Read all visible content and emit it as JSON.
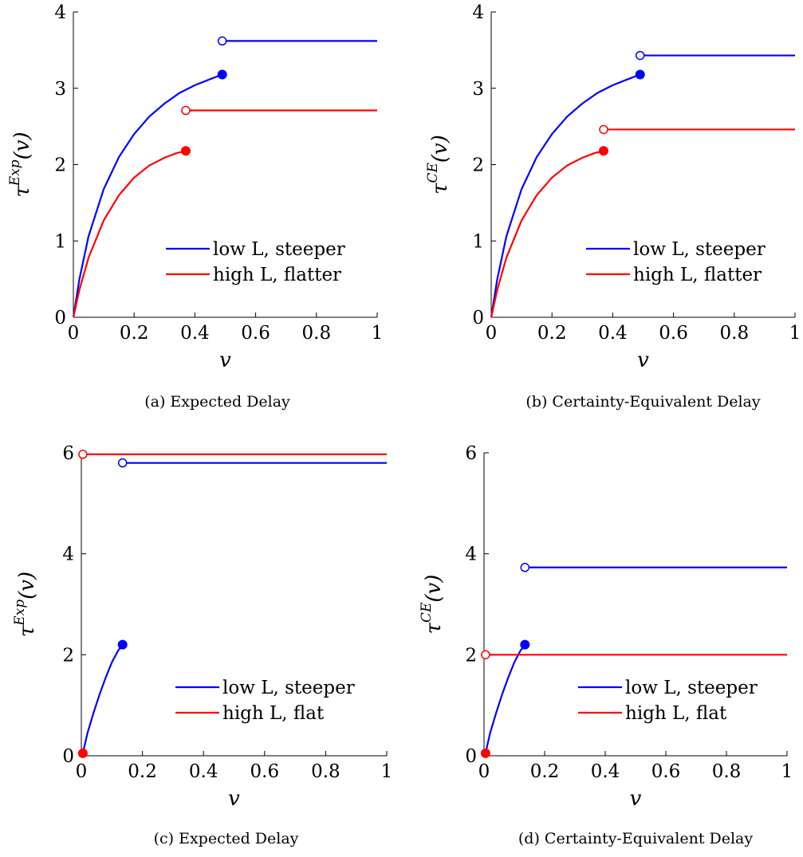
{
  "chart_data": [
    {
      "type": "line",
      "caption": "(a) Expected Delay",
      "ylabel": {
        "base": "τ",
        "sup": "Exp",
        "arg": "(v)"
      },
      "xlabel": "v",
      "xlim": [
        0,
        1
      ],
      "ylim": [
        0,
        4
      ],
      "xticks": [
        "0",
        "0.2",
        "0.4",
        "0.6",
        "0.8",
        "1"
      ],
      "xtick_values": [
        0,
        0.2,
        0.4,
        0.6,
        0.8,
        1
      ],
      "yticks": [
        "0",
        "1",
        "2",
        "3",
        "4"
      ],
      "ytick_values": [
        0,
        1,
        2,
        3,
        4
      ],
      "legend": "bottom-right",
      "series": [
        {
          "name": "low L, steeper",
          "color": "#0000ff",
          "curve": [
            [
              0,
              0
            ],
            [
              0.02,
              0.5
            ],
            [
              0.05,
              1.06
            ],
            [
              0.1,
              1.68
            ],
            [
              0.15,
              2.1
            ],
            [
              0.2,
              2.4
            ],
            [
              0.25,
              2.63
            ],
            [
              0.3,
              2.8
            ],
            [
              0.35,
              2.94
            ],
            [
              0.4,
              3.04
            ],
            [
              0.45,
              3.12
            ],
            [
              0.49,
              3.18
            ]
          ],
          "closed_point": [
            0.49,
            3.18
          ],
          "open_point": [
            0.49,
            3.62
          ],
          "flat": [
            [
              0.49,
              3.62
            ],
            [
              1,
              3.62
            ]
          ]
        },
        {
          "name": "high L, flatter",
          "color": "#ff0000",
          "curve": [
            [
              0,
              0
            ],
            [
              0.02,
              0.36
            ],
            [
              0.05,
              0.78
            ],
            [
              0.1,
              1.27
            ],
            [
              0.15,
              1.6
            ],
            [
              0.2,
              1.83
            ],
            [
              0.25,
              1.99
            ],
            [
              0.3,
              2.09
            ],
            [
              0.34,
              2.15
            ],
            [
              0.37,
              2.18
            ]
          ],
          "closed_point": [
            0.37,
            2.18
          ],
          "open_point": [
            0.37,
            2.71
          ],
          "flat": [
            [
              0.37,
              2.71
            ],
            [
              1,
              2.71
            ]
          ]
        }
      ]
    },
    {
      "type": "line",
      "caption": "(b) Certainty-Equivalent Delay",
      "ylabel": {
        "base": "τ",
        "sup": "CE",
        "arg": "(v)"
      },
      "xlabel": "v",
      "xlim": [
        0,
        1
      ],
      "ylim": [
        0,
        4
      ],
      "xticks": [
        "0",
        "0.2",
        "0.4",
        "0.6",
        "0.8",
        "1"
      ],
      "xtick_values": [
        0,
        0.2,
        0.4,
        0.6,
        0.8,
        1
      ],
      "yticks": [
        "0",
        "1",
        "2",
        "3",
        "4"
      ],
      "ytick_values": [
        0,
        1,
        2,
        3,
        4
      ],
      "legend": "bottom-right",
      "series": [
        {
          "name": "low L, steeper",
          "color": "#0000ff",
          "curve": [
            [
              0,
              0
            ],
            [
              0.02,
              0.5
            ],
            [
              0.05,
              1.06
            ],
            [
              0.1,
              1.68
            ],
            [
              0.15,
              2.1
            ],
            [
              0.2,
              2.4
            ],
            [
              0.25,
              2.63
            ],
            [
              0.3,
              2.8
            ],
            [
              0.35,
              2.94
            ],
            [
              0.4,
              3.04
            ],
            [
              0.45,
              3.12
            ],
            [
              0.49,
              3.18
            ]
          ],
          "closed_point": [
            0.49,
            3.18
          ],
          "open_point": [
            0.49,
            3.43
          ],
          "flat": [
            [
              0.49,
              3.43
            ],
            [
              1,
              3.43
            ]
          ]
        },
        {
          "name": "high L, flatter",
          "color": "#ff0000",
          "curve": [
            [
              0,
              0
            ],
            [
              0.02,
              0.36
            ],
            [
              0.05,
              0.78
            ],
            [
              0.1,
              1.27
            ],
            [
              0.15,
              1.6
            ],
            [
              0.2,
              1.83
            ],
            [
              0.25,
              1.99
            ],
            [
              0.3,
              2.09
            ],
            [
              0.34,
              2.15
            ],
            [
              0.37,
              2.18
            ]
          ],
          "closed_point": [
            0.37,
            2.18
          ],
          "open_point": [
            0.37,
            2.46
          ],
          "flat": [
            [
              0.37,
              2.46
            ],
            [
              1,
              2.46
            ]
          ]
        }
      ]
    },
    {
      "type": "line",
      "caption": "(c) Expected Delay",
      "ylabel": {
        "base": "τ",
        "sup": "Exp",
        "arg": "(v)"
      },
      "xlabel": "v",
      "xlim": [
        0,
        1
      ],
      "ylim": [
        0,
        6
      ],
      "xticks": [
        "0",
        "0.2",
        "0.4",
        "0.6",
        "0.8",
        "1"
      ],
      "xtick_values": [
        0,
        0.2,
        0.4,
        0.6,
        0.8,
        1
      ],
      "yticks": [
        "0",
        "2",
        "4",
        "6"
      ],
      "ytick_values": [
        0,
        2,
        4,
        6
      ],
      "legend": "bottom-right",
      "series": [
        {
          "name": "low L, steeper",
          "color": "#0000ff",
          "curve": [
            [
              0.005,
              0.05
            ],
            [
              0.02,
              0.45
            ],
            [
              0.04,
              0.85
            ],
            [
              0.06,
              1.22
            ],
            [
              0.08,
              1.55
            ],
            [
              0.1,
              1.85
            ],
            [
              0.12,
              2.08
            ],
            [
              0.135,
              2.2
            ]
          ],
          "closed_point": [
            0.135,
            2.2
          ],
          "open_point": [
            0.135,
            5.8
          ],
          "flat": [
            [
              0.135,
              5.8
            ],
            [
              1,
              5.8
            ]
          ]
        },
        {
          "name": "high L, flat",
          "color": "#ff0000",
          "curve": [],
          "closed_point": [
            0.005,
            0.05
          ],
          "open_point": [
            0.005,
            5.97
          ],
          "flat": [
            [
              0.005,
              5.97
            ],
            [
              1,
              5.97
            ]
          ]
        }
      ]
    },
    {
      "type": "line",
      "caption": "(d) Certainty-Equivalent Delay",
      "ylabel": {
        "base": "τ",
        "sup": "CE",
        "arg": "(v)"
      },
      "xlabel": "v",
      "xlim": [
        0,
        1
      ],
      "ylim": [
        0,
        6
      ],
      "xticks": [
        "0",
        "0.2",
        "0.4",
        "0.6",
        "0.8",
        "1"
      ],
      "xtick_values": [
        0,
        0.2,
        0.4,
        0.6,
        0.8,
        1
      ],
      "yticks": [
        "0",
        "2",
        "4",
        "6"
      ],
      "ytick_values": [
        0,
        2,
        4,
        6
      ],
      "legend": "bottom-right",
      "series": [
        {
          "name": "low L, steeper",
          "color": "#0000ff",
          "curve": [
            [
              0.005,
              0.05
            ],
            [
              0.02,
              0.45
            ],
            [
              0.04,
              0.85
            ],
            [
              0.06,
              1.22
            ],
            [
              0.08,
              1.55
            ],
            [
              0.1,
              1.85
            ],
            [
              0.12,
              2.08
            ],
            [
              0.135,
              2.2
            ]
          ],
          "closed_point": [
            0.135,
            2.2
          ],
          "open_point": [
            0.135,
            3.73
          ],
          "flat": [
            [
              0.135,
              3.73
            ],
            [
              1,
              3.73
            ]
          ]
        },
        {
          "name": "high L, flat",
          "color": "#ff0000",
          "curve": [],
          "closed_point": [
            0.005,
            0.05
          ],
          "open_point": [
            0.005,
            2.0
          ],
          "flat": [
            [
              0.005,
              2.0
            ],
            [
              1,
              2.0
            ]
          ]
        }
      ]
    }
  ]
}
